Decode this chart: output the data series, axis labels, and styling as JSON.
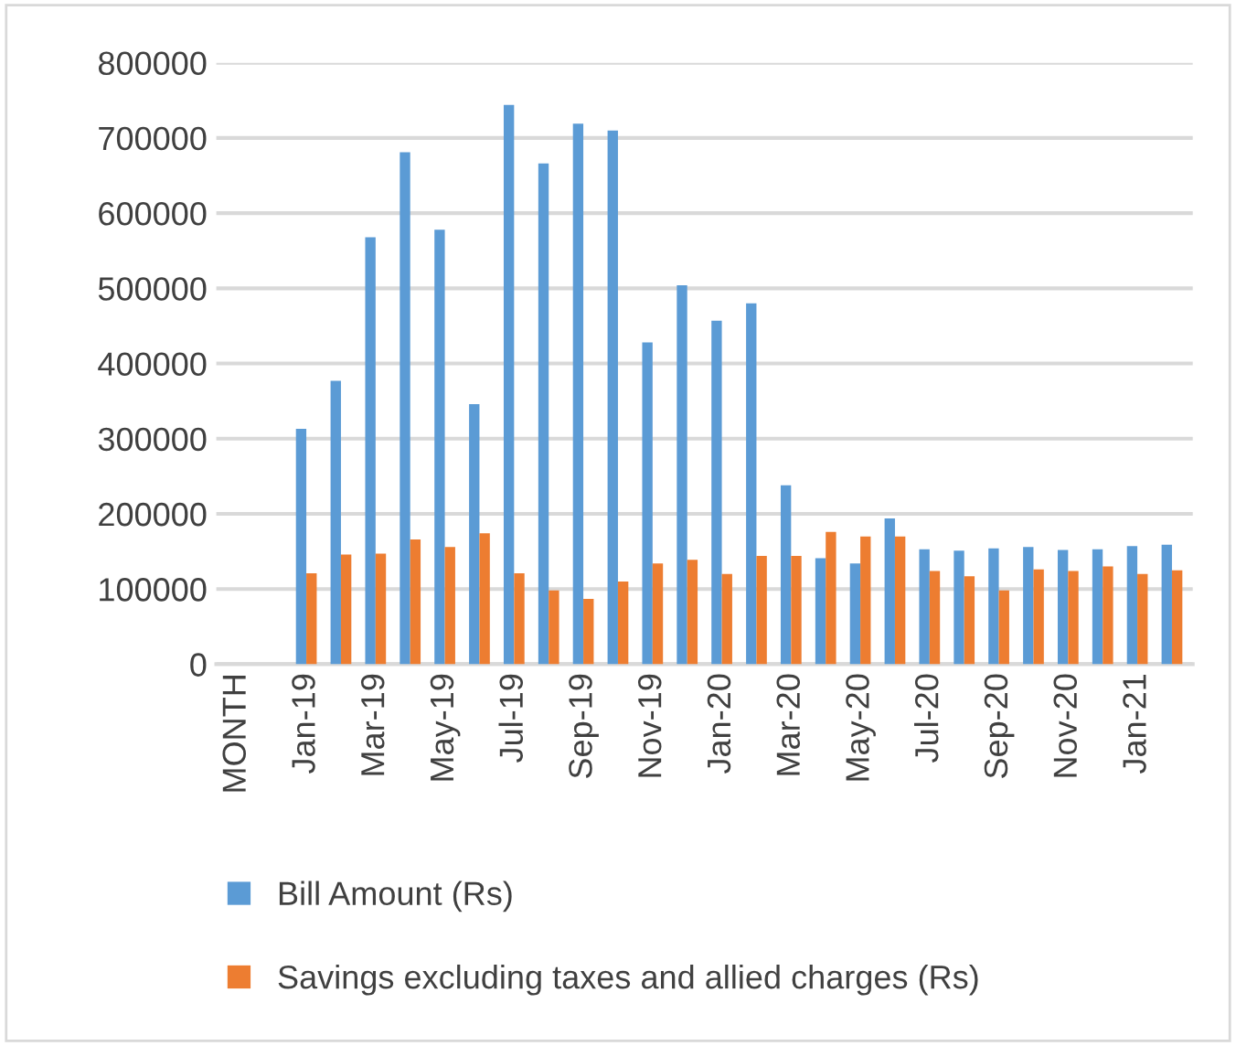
{
  "chart_data": {
    "type": "bar",
    "categories": [
      "MONTH",
      null,
      "Jan-19",
      null,
      "Mar-19",
      null,
      "May-19",
      null,
      "Jul-19",
      null,
      "Sep-19",
      null,
      "Nov-19",
      null,
      "Jan-20",
      null,
      "Mar-20",
      null,
      "May-20",
      null,
      "Jul-20",
      null,
      "Sep-20",
      null,
      "Nov-20",
      null,
      "Jan-21",
      null
    ],
    "series": [
      {
        "name": "Bill Amount (Rs)",
        "color": "#5b9bd5",
        "values": [
          null,
          null,
          313000,
          377000,
          568000,
          681000,
          578000,
          346000,
          744000,
          666000,
          719000,
          710000,
          428000,
          504000,
          457000,
          480000,
          238000,
          141000,
          134000,
          194000,
          153000,
          151000,
          154000,
          156000,
          152000,
          153000,
          157000,
          159000
        ]
      },
      {
        "name": "Savings excluding taxes and allied charges (Rs)",
        "color": "#ed7d31",
        "values": [
          null,
          null,
          121000,
          146000,
          147000,
          166000,
          156000,
          174000,
          121000,
          98000,
          87000,
          110000,
          134000,
          139000,
          120000,
          144000,
          144000,
          176000,
          170000,
          170000,
          124000,
          117000,
          98000,
          126000,
          124000,
          130000,
          120000,
          125000
        ]
      }
    ],
    "ylim": [
      0,
      800000
    ],
    "yticks": [
      0,
      100000,
      200000,
      300000,
      400000,
      500000,
      600000,
      700000,
      800000
    ],
    "grid": "y",
    "legend": "bottom"
  }
}
